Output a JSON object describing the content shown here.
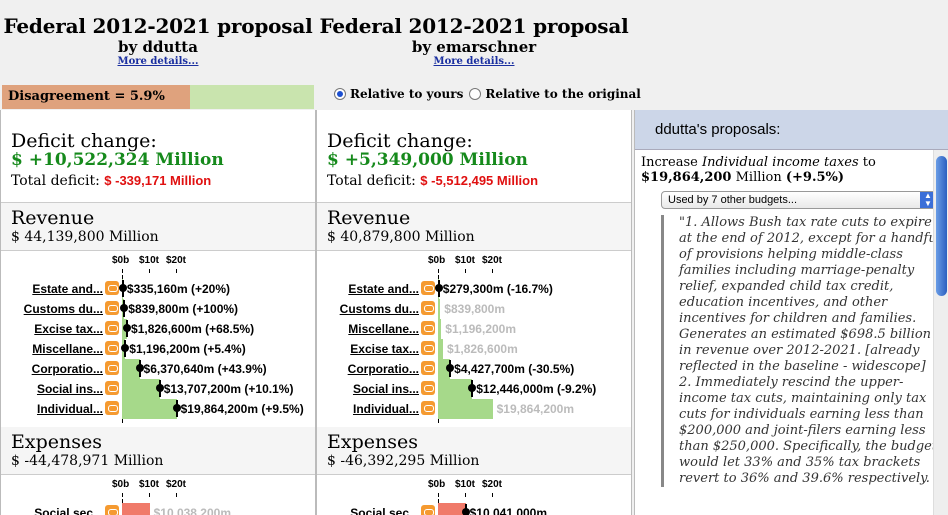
{
  "colors": {
    "accent": "#1c4fd0",
    "green_bar": "#a6d98a",
    "red_bar": "#f07a6a",
    "disagree": "#dfa27d",
    "deficit_green": "#168a1c",
    "red_text": "#e01010"
  },
  "left": {
    "title": "Federal 2012-2021 proposal",
    "by": "by ddutta",
    "more": "More details...",
    "deficit_heading": "Deficit change:",
    "deficit_value": "$ +10,522,324 Million",
    "total_label": "Total deficit:",
    "total_value": "$ -339,171 Million",
    "revenue_heading": "Revenue",
    "revenue_amount": "$ 44,139,800 Million",
    "expenses_heading": "Expenses",
    "expenses_amount": "$ -44,478,971 Million",
    "rev_rows": [
      {
        "label": "Estate and...",
        "value_text": "$335,160m (+20%)",
        "value": 335160,
        "grey": false
      },
      {
        "label": "Customs du...",
        "value_text": "$839,800m (+100%)",
        "value": 839800,
        "grey": false
      },
      {
        "label": "Excise tax...",
        "value_text": "$1,826,600m (+68.5%)",
        "value": 1826600,
        "grey": false
      },
      {
        "label": "Miscellane...",
        "value_text": "$1,196,200m (+5.4%)",
        "value": 1196200,
        "grey": false
      },
      {
        "label": "Corporatio...",
        "value_text": "$6,370,640m (+43.9%)",
        "value": 6370640,
        "grey": false
      },
      {
        "label": "Social ins...",
        "value_text": "$13,707,200m (+10.1%)",
        "value": 13707200,
        "grey": false
      },
      {
        "label": "Individual...",
        "value_text": "$19,864,200m (+9.5%)",
        "value": 19864200,
        "grey": false
      }
    ],
    "exp_rows": [
      {
        "label": "Social sec...",
        "value_text": "$10,038,200m",
        "value": 10038200,
        "grey": true
      }
    ]
  },
  "mid": {
    "title": "Federal 2012-2021 proposal",
    "by": "by emarschner",
    "more": "More details...",
    "deficit_heading": "Deficit change:",
    "deficit_value": "$ +5,349,000 Million",
    "total_label": "Total deficit:",
    "total_value": "$ -5,512,495 Million",
    "revenue_heading": "Revenue",
    "revenue_amount": "$ 40,879,800 Million",
    "expenses_heading": "Expenses",
    "expenses_amount": "$ -46,392,295 Million",
    "rev_rows": [
      {
        "label": "Estate and...",
        "value_text": "$279,300m (-16.7%)",
        "value": 279300,
        "grey": false
      },
      {
        "label": "Customs du...",
        "value_text": "$839,800m",
        "value": 839800,
        "grey": true
      },
      {
        "label": "Miscellane...",
        "value_text": "$1,196,200m",
        "value": 1196200,
        "grey": true
      },
      {
        "label": "Excise tax...",
        "value_text": "$1,826,600m",
        "value": 1826600,
        "grey": true
      },
      {
        "label": "Corporatio...",
        "value_text": "$4,427,700m (-30.5%)",
        "value": 4427700,
        "grey": false
      },
      {
        "label": "Social ins...",
        "value_text": "$12,446,000m (-9.2%)",
        "value": 12446000,
        "grey": false
      },
      {
        "label": "Individual...",
        "value_text": "$19,864,200m",
        "value": 19864200,
        "grey": true
      }
    ],
    "exp_rows": [
      {
        "label": "Social sec...",
        "value_text": "$10,041,000m",
        "value": 10041000,
        "grey": false
      }
    ]
  },
  "ticks": [
    "$0b",
    "$10t",
    "$20t"
  ],
  "disagreement": {
    "label": "Disagreement = 5.9%",
    "fraction": 0.059
  },
  "radios": {
    "opt1": "Relative to yours",
    "opt2": "Relative to the original",
    "selected": 1
  },
  "right": {
    "title": "ddutta's proposals:",
    "line1_pre": "Increase ",
    "line1_em": "Individual income taxes",
    "line1_post": " to",
    "line2_bold": "$19,864,200",
    "line2_rest": " Million ",
    "line2_pct": "(+9.5%)",
    "select": "Used by 7 other budgets...",
    "quote": "\"1. Allows Bush tax rate cuts to expire at the end of 2012, except for a handful of provisions helping middle-class families including marriage-penalty relief, expanded child tax credit, education incentives, and other incentives for children and families. Generates an estimated $698.5 billion in revenue over 2012-2021. [already reflected in the baseline - widescope] 2. Immediately rescind the upper-income tax cuts, maintaining only tax cuts for individuals earning less than $200,000 and joint-filers earning less than $250,000. Specifically, the budget would let 33% and 35% tax brackets revert to 36% and 39.6% respectively."
  }
}
